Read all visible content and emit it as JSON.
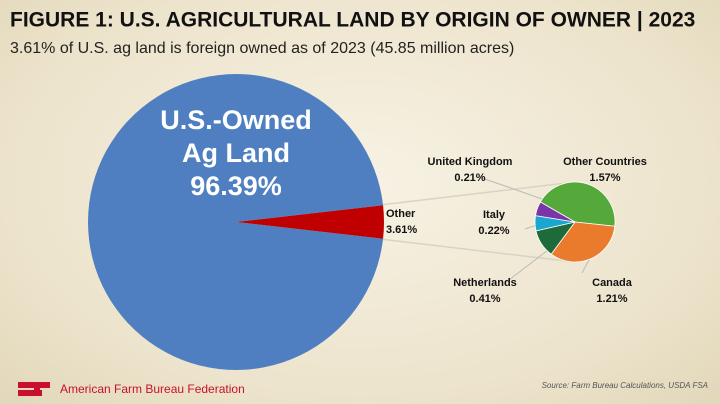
{
  "chart_data": [
    {
      "type": "pie",
      "title": "FIGURE 1: U.S. AGRICULTURAL LAND BY ORIGIN OF OWNER | 2023",
      "subtitle": "3.61% of U.S. ag land is foreign owned as of 2023 (45.85 million acres)",
      "categories": [
        "U.S.-Owned Ag Land",
        "Other"
      ],
      "values": [
        96.39,
        3.61
      ],
      "value_labels": [
        "96.39%",
        "3.61%"
      ],
      "colors": [
        "#4f7fc0",
        "#c00000"
      ]
    },
    {
      "type": "pie",
      "categories": [
        "Other Countries",
        "Canada",
        "Netherlands",
        "Italy",
        "United Kingdom"
      ],
      "values": [
        1.57,
        1.21,
        0.41,
        0.22,
        0.21
      ],
      "value_labels": [
        "1.57%",
        "1.21%",
        "0.41%",
        "0.22%",
        "0.21%"
      ],
      "colors": [
        "#55a83a",
        "#ea7a2c",
        "#1f6a3a",
        "#1aa6cf",
        "#7a35a8"
      ]
    }
  ],
  "footer": {
    "brand": "American Farm Bureau Federation",
    "source": "Source: Farm Bureau Calculations, USDA FSA"
  }
}
